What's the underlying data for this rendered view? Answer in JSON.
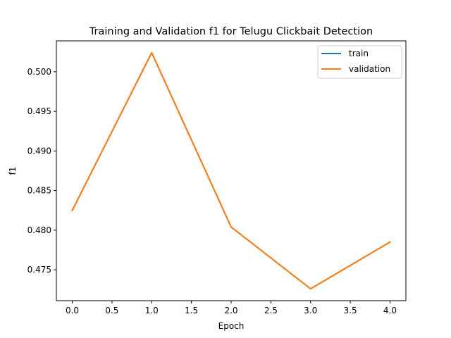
{
  "chart_data": {
    "type": "line",
    "title": "Training and Validation f1 for Telugu Clickbait Detection",
    "xlabel": "Epoch",
    "ylabel": "f1",
    "x": [
      0,
      1,
      2,
      3,
      4
    ],
    "series": [
      {
        "name": "train",
        "color": "#1f77b4",
        "values": [
          0.4825,
          0.5024,
          0.4804,
          0.4726,
          0.4785
        ]
      },
      {
        "name": "validation",
        "color": "#ff7f0e",
        "values": [
          0.4825,
          0.5024,
          0.4804,
          0.4726,
          0.4785
        ]
      }
    ],
    "xlim": [
      -0.2,
      4.2
    ],
    "ylim": [
      0.4711,
      0.5039
    ],
    "xticks": [
      0.0,
      0.5,
      1.0,
      1.5,
      2.0,
      2.5,
      3.0,
      3.5,
      4.0
    ],
    "xtick_labels": [
      "0.0",
      "0.5",
      "1.0",
      "1.5",
      "2.0",
      "2.5",
      "3.0",
      "3.5",
      "4.0"
    ],
    "yticks": [
      0.475,
      0.48,
      0.485,
      0.49,
      0.495,
      0.5
    ],
    "ytick_labels": [
      "0.475",
      "0.480",
      "0.485",
      "0.490",
      "0.495",
      "0.500"
    ],
    "grid": false,
    "legend_position": "top-right"
  }
}
